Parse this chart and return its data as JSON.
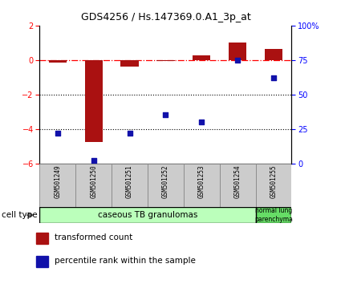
{
  "title": "GDS4256 / Hs.147369.0.A1_3p_at",
  "samples": [
    "GSM501249",
    "GSM501250",
    "GSM501251",
    "GSM501252",
    "GSM501253",
    "GSM501254",
    "GSM501255"
  ],
  "transformed_count": [
    -0.15,
    -4.75,
    -0.4,
    -0.05,
    0.25,
    1.0,
    0.65
  ],
  "percentile_rank": [
    22,
    2,
    22,
    35,
    30,
    75,
    62
  ],
  "ylim_left": [
    -6,
    2
  ],
  "ylim_right": [
    0,
    100
  ],
  "yticks_left": [
    -6,
    -4,
    -2,
    0,
    2
  ],
  "yticks_right": [
    0,
    25,
    50,
    75,
    100
  ],
  "ytick_labels_right": [
    "0",
    "25",
    "50",
    "75",
    "100%"
  ],
  "bar_color": "#aa1111",
  "dot_color": "#1111aa",
  "dotted_lines": [
    -2,
    -4
  ],
  "group1_color": "#bbffbb",
  "group2_color": "#66dd66",
  "legend_items": [
    {
      "color": "#aa1111",
      "label": "transformed count"
    },
    {
      "color": "#1111aa",
      "label": "percentile rank within the sample"
    }
  ],
  "cell_type_label": "cell type",
  "bar_width": 0.5,
  "dot_size": 18
}
